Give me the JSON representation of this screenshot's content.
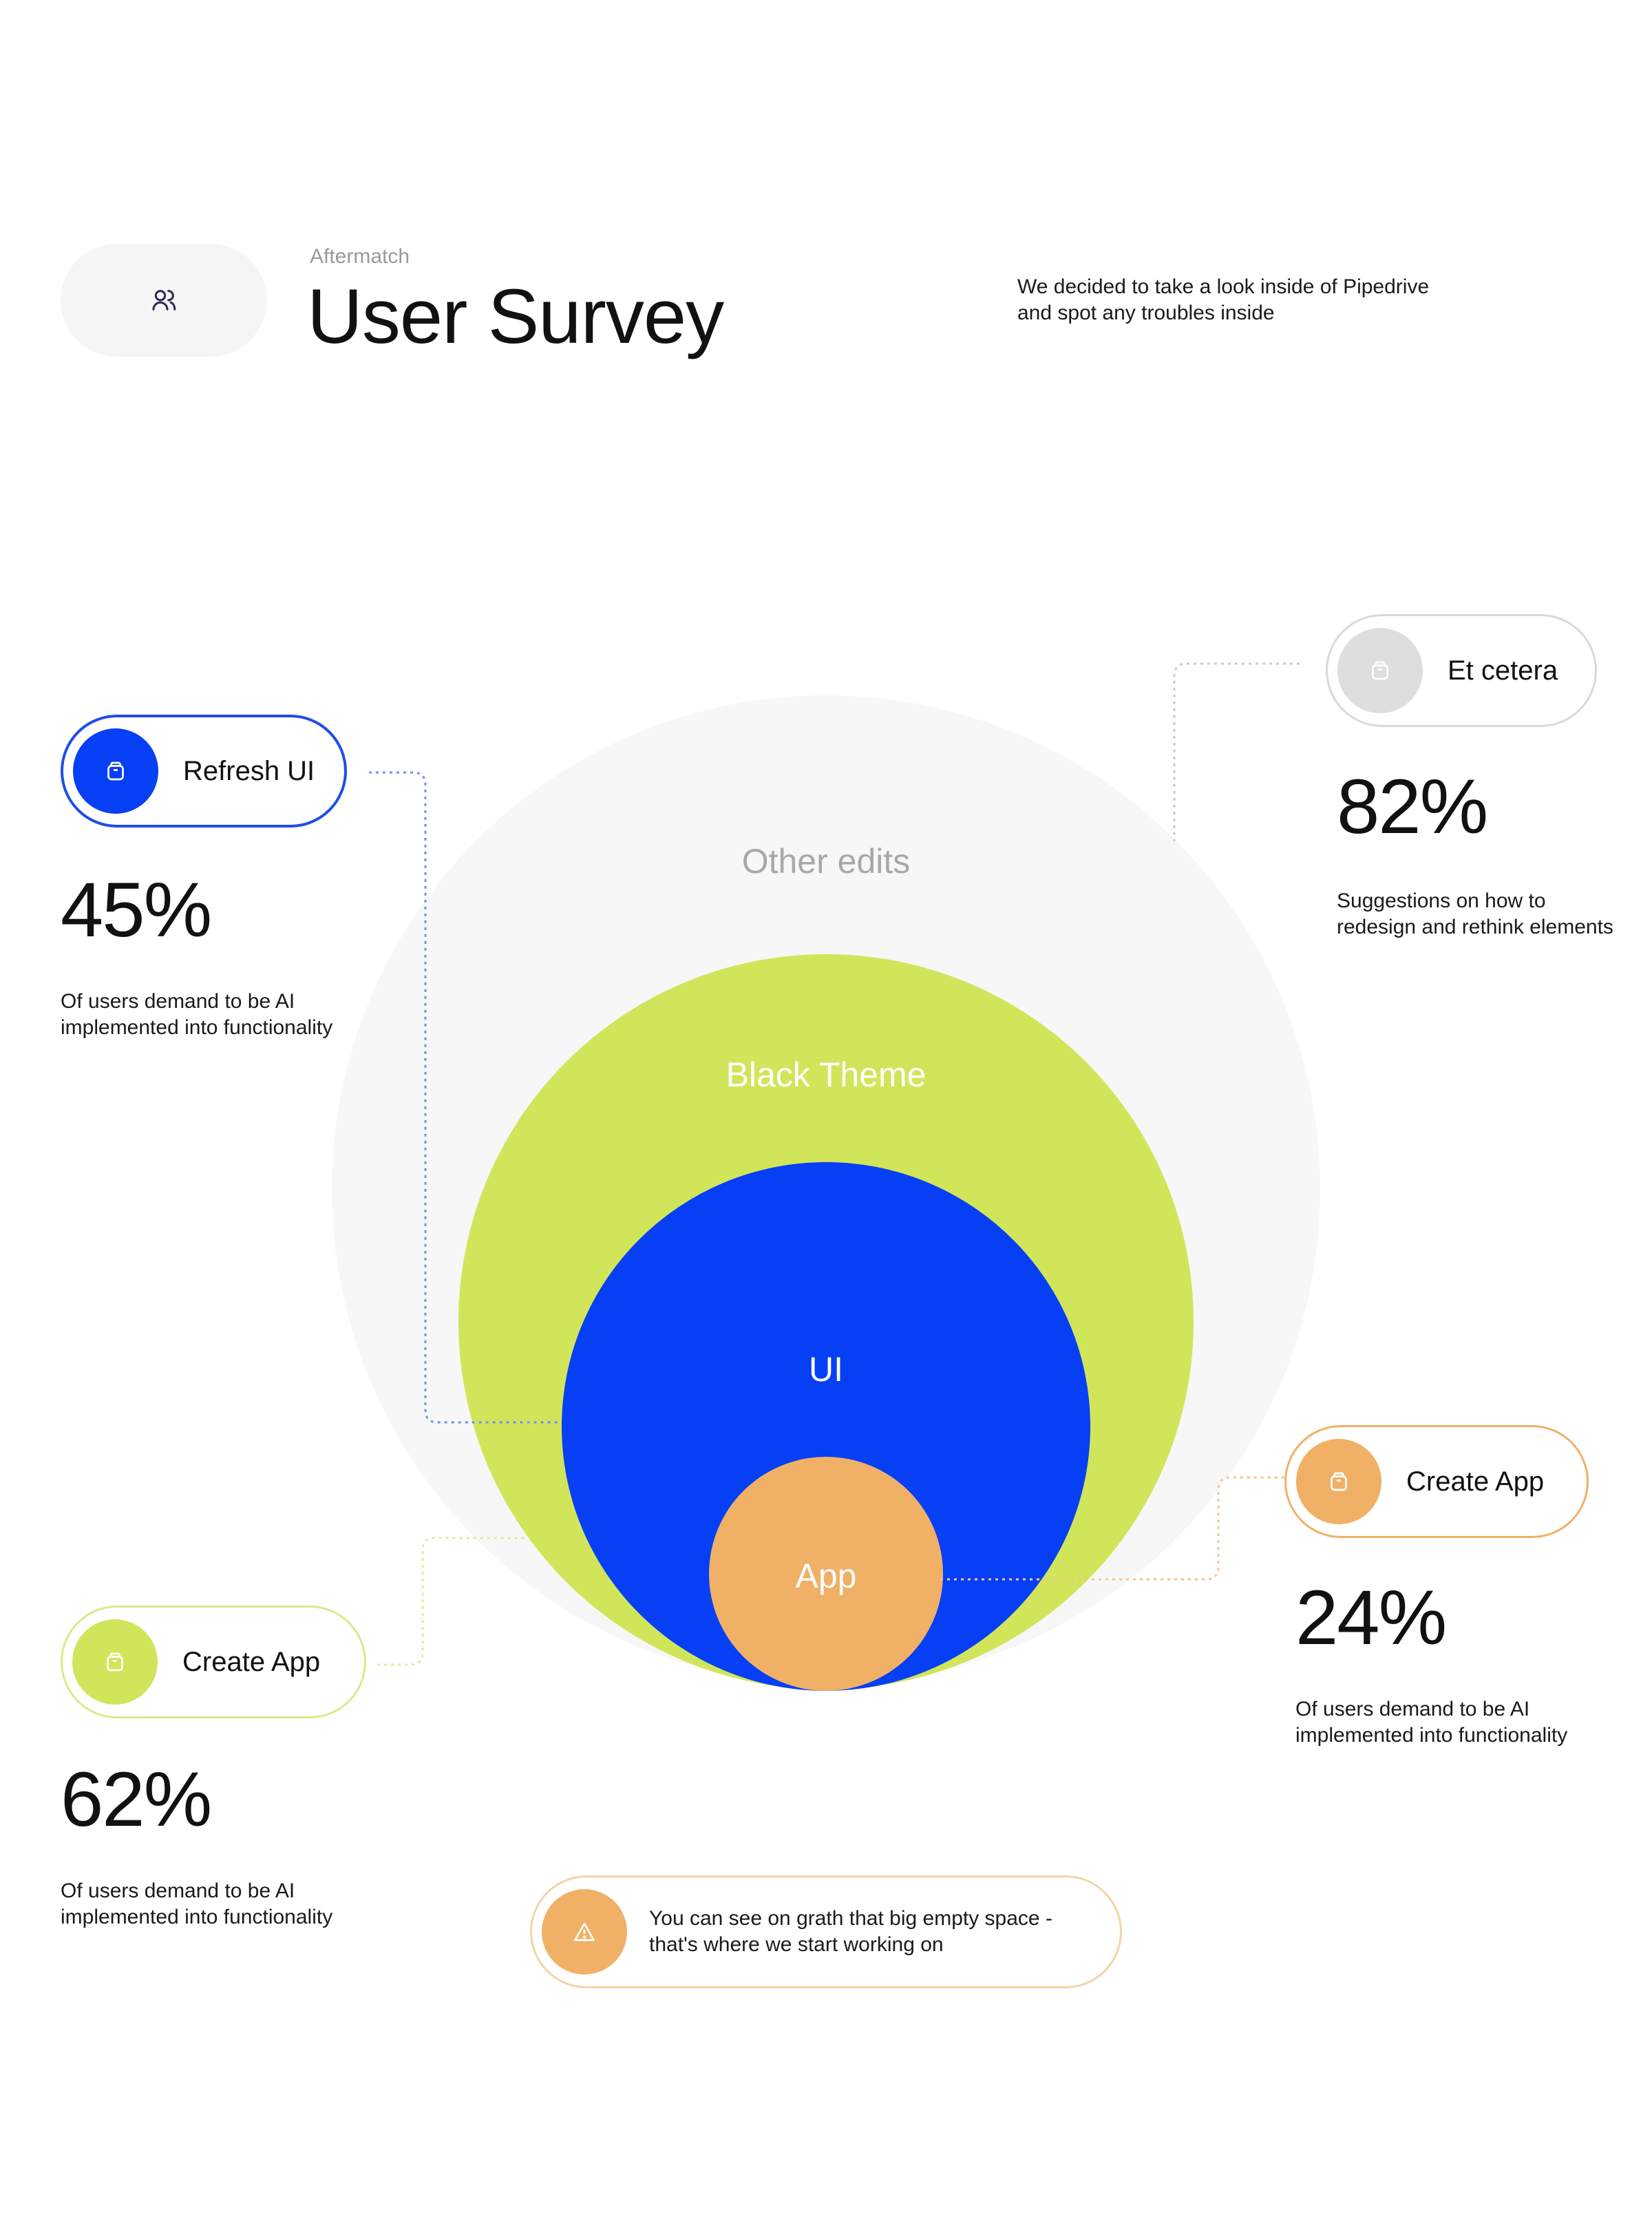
{
  "header": {
    "eyebrow": "Aftermatch",
    "title": "User Survey",
    "intro_lines": [
      "We decided to take a look inside of Pipedrive",
      "and spot any troubles inside"
    ],
    "icon": "users-icon"
  },
  "diagram": {
    "circles": [
      {
        "label": "Other edits",
        "color": "#f7f7f7",
        "label_color": "#a8a8a8"
      },
      {
        "label": "Black Theme",
        "color": "#d1e55a",
        "label_color": "#ffffff"
      },
      {
        "label": "UI",
        "color": "#073ff5",
        "label_color": "#ffffff"
      },
      {
        "label": "App",
        "color": "#f0b066",
        "label_color": "#ffffff"
      }
    ]
  },
  "callouts": {
    "refresh_ui": {
      "label": "Refresh UI",
      "stat": "45%",
      "desc_lines": [
        "Of users demand to be AI",
        "implemented into functionality"
      ],
      "color": "#073ff5",
      "border": "#1f4de8",
      "icon": "package-icon"
    },
    "et_cetera": {
      "label": "Et cetera",
      "stat": "82%",
      "desc_lines": [
        "Suggestions on how to",
        "redesign and rethink elements"
      ],
      "color": "#dedede",
      "border": "#d9d9d9",
      "icon": "package-icon"
    },
    "create_app_right": {
      "label": "Create App",
      "stat": "24%",
      "desc_lines": [
        "Of users demand to be AI",
        "implemented into functionality"
      ],
      "color": "#f0b066",
      "border": "#f0b066",
      "icon": "package-icon"
    },
    "create_app_left": {
      "label": "Create App",
      "stat": "62%",
      "desc_lines": [
        "Of users demand to be AI",
        "implemented into functionality"
      ],
      "color": "#d1e55a",
      "border": "#dbe98a",
      "icon": "package-icon"
    }
  },
  "note": {
    "lines": [
      "You can see on grath that big empty space -",
      "that's where we start working on"
    ],
    "color": "#f0b066",
    "icon": "warning-icon"
  }
}
